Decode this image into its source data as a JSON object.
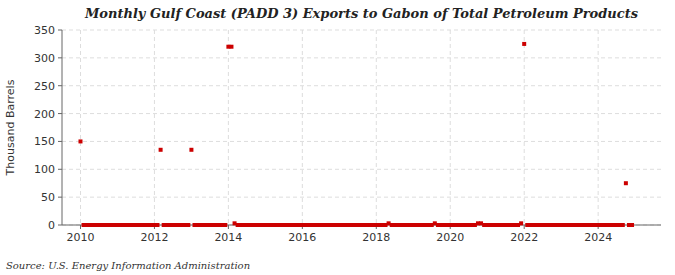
{
  "chart_data": {
    "type": "scatter",
    "title": "Monthly Gulf Coast (PADD 3) Exports to Gabon of Total Petroleum Products",
    "y_label": "Thousand Barrels",
    "source": "Source: U.S. Energy Information Administration",
    "color": "#cc0000",
    "marker": "square",
    "grid": true,
    "xlim": [
      2009.5,
      2025.7
    ],
    "xticks": [
      2010,
      2012,
      2014,
      2016,
      2018,
      2020,
      2022,
      2024
    ],
    "ylim": [
      0,
      350
    ],
    "yticks": [
      0,
      50,
      100,
      150,
      200,
      250,
      300,
      350
    ],
    "x": [
      2010.0,
      2010.083,
      2010.167,
      2010.25,
      2010.333,
      2010.417,
      2010.5,
      2010.583,
      2010.667,
      2010.75,
      2010.833,
      2010.917,
      2011.0,
      2011.083,
      2011.167,
      2011.25,
      2011.333,
      2011.417,
      2011.5,
      2011.583,
      2011.667,
      2011.75,
      2011.833,
      2011.917,
      2012.0,
      2012.083,
      2012.167,
      2012.25,
      2012.333,
      2012.417,
      2012.5,
      2012.583,
      2012.667,
      2012.75,
      2012.833,
      2012.917,
      2013.0,
      2013.083,
      2013.167,
      2013.25,
      2013.333,
      2013.417,
      2013.5,
      2013.583,
      2013.667,
      2013.75,
      2013.833,
      2013.917,
      2014.0,
      2014.083,
      2014.167,
      2014.25,
      2014.333,
      2014.417,
      2014.5,
      2014.583,
      2014.667,
      2014.75,
      2014.833,
      2014.917,
      2015.0,
      2015.083,
      2015.167,
      2015.25,
      2015.333,
      2015.417,
      2015.5,
      2015.583,
      2015.667,
      2015.75,
      2015.833,
      2015.917,
      2016.0,
      2016.083,
      2016.167,
      2016.25,
      2016.333,
      2016.417,
      2016.5,
      2016.583,
      2016.667,
      2016.75,
      2016.833,
      2016.917,
      2017.0,
      2017.083,
      2017.167,
      2017.25,
      2017.333,
      2017.417,
      2017.5,
      2017.583,
      2017.667,
      2017.75,
      2017.833,
      2017.917,
      2018.0,
      2018.083,
      2018.167,
      2018.25,
      2018.333,
      2018.417,
      2018.5,
      2018.583,
      2018.667,
      2018.75,
      2018.833,
      2018.917,
      2019.0,
      2019.083,
      2019.167,
      2019.25,
      2019.333,
      2019.417,
      2019.5,
      2019.583,
      2019.667,
      2019.75,
      2019.833,
      2019.917,
      2020.0,
      2020.083,
      2020.167,
      2020.25,
      2020.333,
      2020.417,
      2020.5,
      2020.583,
      2020.667,
      2020.75,
      2020.833,
      2020.917,
      2021.0,
      2021.083,
      2021.167,
      2021.25,
      2021.333,
      2021.417,
      2021.5,
      2021.583,
      2021.667,
      2021.75,
      2021.833,
      2021.917,
      2022.0,
      2022.083,
      2022.167,
      2022.25,
      2022.333,
      2022.417,
      2022.5,
      2022.583,
      2022.667,
      2022.75,
      2022.833,
      2022.917,
      2023.0,
      2023.083,
      2023.167,
      2023.25,
      2023.333,
      2023.417,
      2023.5,
      2023.583,
      2023.667,
      2023.75,
      2023.833,
      2023.917,
      2024.0,
      2024.083,
      2024.167,
      2024.25,
      2024.333,
      2024.417,
      2024.5,
      2024.583,
      2024.667,
      2024.75,
      2024.833,
      2024.917
    ],
    "values": [
      150,
      0,
      0,
      0,
      0,
      0,
      0,
      0,
      0,
      0,
      0,
      0,
      0,
      0,
      0,
      0,
      0,
      0,
      0,
      0,
      0,
      0,
      0,
      0,
      0,
      0,
      135,
      0,
      0,
      0,
      0,
      0,
      0,
      0,
      0,
      0,
      135,
      0,
      0,
      0,
      0,
      0,
      0,
      0,
      0,
      0,
      0,
      0,
      320,
      320,
      3,
      0,
      0,
      0,
      0,
      0,
      0,
      0,
      0,
      0,
      0,
      0,
      0,
      0,
      0,
      0,
      0,
      0,
      0,
      0,
      0,
      0,
      0,
      0,
      0,
      0,
      0,
      0,
      0,
      0,
      0,
      0,
      0,
      0,
      0,
      0,
      0,
      0,
      0,
      0,
      0,
      0,
      0,
      0,
      0,
      0,
      0,
      0,
      0,
      0,
      3,
      0,
      0,
      0,
      0,
      0,
      0,
      0,
      0,
      0,
      0,
      0,
      0,
      0,
      0,
      3,
      0,
      0,
      0,
      0,
      0,
      0,
      0,
      0,
      0,
      0,
      0,
      0,
      0,
      3,
      3,
      0,
      0,
      0,
      0,
      0,
      0,
      0,
      0,
      0,
      0,
      0,
      0,
      3,
      325,
      0,
      0,
      0,
      0,
      0,
      0,
      0,
      0,
      0,
      0,
      0,
      0,
      0,
      0,
      0,
      0,
      0,
      0,
      0,
      0,
      0,
      0,
      0,
      0,
      0,
      0,
      0,
      0,
      0,
      0,
      0,
      0,
      75,
      0,
      0
    ]
  }
}
